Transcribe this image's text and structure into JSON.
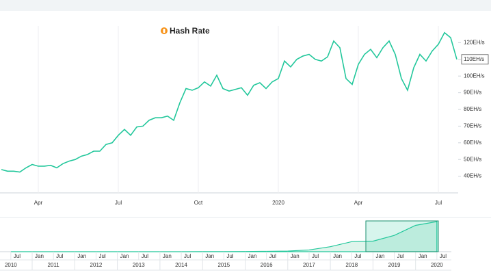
{
  "chart_data": [
    {
      "type": "line",
      "title": "Hash Rate",
      "categories": [
        null,
        null,
        null,
        null,
        null,
        null,
        "Apr",
        null,
        null,
        null,
        null,
        null,
        null,
        null,
        null,
        null,
        null,
        null,
        null,
        "Jul",
        null,
        null,
        null,
        null,
        null,
        null,
        null,
        null,
        null,
        null,
        null,
        null,
        "Oct",
        null,
        null,
        null,
        null,
        null,
        null,
        null,
        null,
        null,
        null,
        null,
        null,
        "2020",
        null,
        null,
        null,
        null,
        null,
        null,
        null,
        null,
        null,
        null,
        null,
        null,
        "Apr",
        null,
        null,
        null,
        null,
        null,
        null,
        null,
        null,
        null,
        null,
        null,
        null,
        "Jul",
        null,
        null,
        null
      ],
      "values": [
        44,
        43,
        43,
        42.5,
        45,
        47,
        46,
        46,
        46.5,
        45,
        47.5,
        49,
        50,
        52,
        53,
        55,
        55,
        59,
        60,
        64.5,
        68,
        64.5,
        69.5,
        70,
        73.5,
        75,
        75,
        76,
        73.5,
        84,
        92.5,
        91.5,
        93,
        96.5,
        94,
        100.5,
        92.5,
        91,
        92,
        93,
        88.5,
        94.5,
        96,
        92.5,
        96.5,
        98.5,
        109,
        105.5,
        110,
        112,
        113,
        110,
        109,
        111.5,
        121,
        117,
        98.5,
        95,
        107,
        113,
        116,
        111,
        117,
        121,
        113,
        98.5,
        91.5,
        105,
        113,
        109,
        115,
        119,
        126,
        123,
        110
      ],
      "last_label": "110EH/s",
      "color": "#22c79b",
      "ylim": [
        30,
        130
      ],
      "yticks": [
        {
          "value": 40,
          "label": "40EH/s"
        },
        {
          "value": 50,
          "label": "50EH/s"
        },
        {
          "value": 60,
          "label": "60EH/s"
        },
        {
          "value": 70,
          "label": "70EH/s"
        },
        {
          "value": 80,
          "label": "80EH/s"
        },
        {
          "value": 90,
          "label": "90EH/s"
        },
        {
          "value": 100,
          "label": "100EH/s"
        },
        {
          "value": 110,
          "label": "110EH/s"
        },
        {
          "value": 120,
          "label": "120EH/s"
        }
      ],
      "grid": true
    },
    {
      "type": "area",
      "x": [
        "2010-07",
        "2011-01",
        "2011-07",
        "2012-01",
        "2012-07",
        "2013-01",
        "2013-07",
        "2014-01",
        "2014-07",
        "2015-01",
        "2015-07",
        "2016-01",
        "2016-07",
        "2017-01",
        "2017-07",
        "2018-01",
        "2018-07",
        "2019-01",
        "2019-07",
        "2020-01",
        "2020-07"
      ],
      "values": [
        0,
        0,
        0,
        0,
        0,
        0,
        0.01,
        0.1,
        0.2,
        0.3,
        0.4,
        0.8,
        1.5,
        2.5,
        7,
        20,
        40,
        42,
        65,
        105,
        120
      ],
      "color": "#22c79b",
      "month_ticks": [
        {
          "value": "2010-07",
          "label": "Jul"
        },
        {
          "value": "2011-01",
          "label": "Jan"
        },
        {
          "value": "2011-07",
          "label": "Jul"
        },
        {
          "value": "2012-01",
          "label": "Jan"
        },
        {
          "value": "2012-07",
          "label": "Jul"
        },
        {
          "value": "2013-01",
          "label": "Jan"
        },
        {
          "value": "2013-07",
          "label": "Jul"
        },
        {
          "value": "2014-01",
          "label": "Jan"
        },
        {
          "value": "2014-07",
          "label": "Jul"
        },
        {
          "value": "2015-01",
          "label": "Jan"
        },
        {
          "value": "2015-07",
          "label": "Jul"
        },
        {
          "value": "2016-01",
          "label": "Jan"
        },
        {
          "value": "2016-07",
          "label": "Jul"
        },
        {
          "value": "2017-01",
          "label": "Jan"
        },
        {
          "value": "2017-07",
          "label": "Jul"
        },
        {
          "value": "2018-01",
          "label": "Jan"
        },
        {
          "value": "2018-07",
          "label": "Jul"
        },
        {
          "value": "2019-01",
          "label": "Jan"
        },
        {
          "value": "2019-07",
          "label": "Jul"
        },
        {
          "value": "2020-01",
          "label": "Jan"
        },
        {
          "value": "2020-07",
          "label": "Jul"
        }
      ],
      "year_labels": [
        2010,
        2011,
        2012,
        2013,
        2014,
        2015,
        2016,
        2017,
        2018,
        2019,
        2020
      ]
    }
  ]
}
